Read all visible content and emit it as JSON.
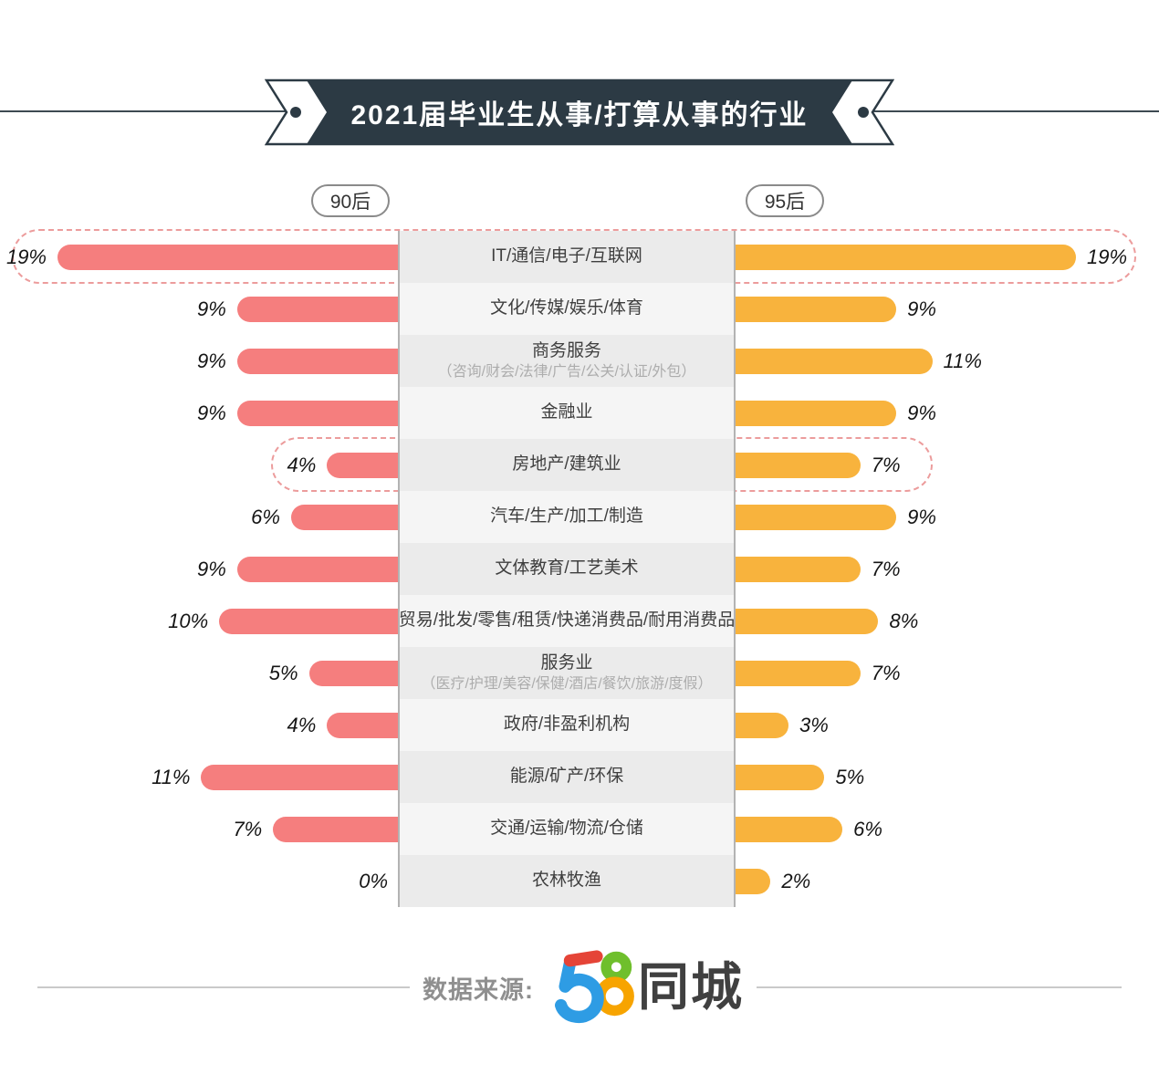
{
  "header": {
    "title": "2021届毕业生从事/打算从事的行业"
  },
  "legend": {
    "left": "90后",
    "right": "95后"
  },
  "chart_data": {
    "type": "bar",
    "orientation": "butterfly-horizontal",
    "title": "2021届毕业生从事/打算从事的行业",
    "unit": "%",
    "value_suffix": "%",
    "xmax": 19,
    "grid": false,
    "categories": [
      "IT/通信/电子/互联网",
      "文化/传媒/娱乐/体育",
      "商务服务",
      "金融业",
      "房地产/建筑业",
      "汽车/生产/加工/制造",
      "文体教育/工艺美术",
      "贸易/批发/零售/租赁/快递消费品/耐用消费品",
      "服务业",
      "政府/非盈利机构",
      "能源/矿产/环保",
      "交通/运输/物流/仓储",
      "农林牧渔"
    ],
    "category_subtitles": [
      "",
      "",
      "（咨询/财会/法律/广告/公关/认证/外包）",
      "",
      "",
      "",
      "",
      "",
      "（医疗/护理/美容/保健/酒店/餐饮/旅游/度假）",
      "",
      "",
      "",
      ""
    ],
    "series": [
      {
        "name": "90后",
        "side": "left",
        "color": "#F57E7E",
        "values": [
          19,
          9,
          9,
          9,
          4,
          6,
          9,
          10,
          5,
          4,
          11,
          7,
          0
        ]
      },
      {
        "name": "95后",
        "side": "right",
        "color": "#F8B33D",
        "values": [
          19,
          9,
          11,
          9,
          7,
          9,
          7,
          8,
          7,
          3,
          5,
          6,
          2
        ]
      }
    ],
    "highlighted_rows": [
      0,
      4
    ],
    "highlight_style": "dashed-outline",
    "highlight_color": "#EC9C9C"
  },
  "footer": {
    "source_label": "数据来源:",
    "logo": {
      "brand": "58同城",
      "number": "58",
      "suffix": "同城"
    }
  }
}
